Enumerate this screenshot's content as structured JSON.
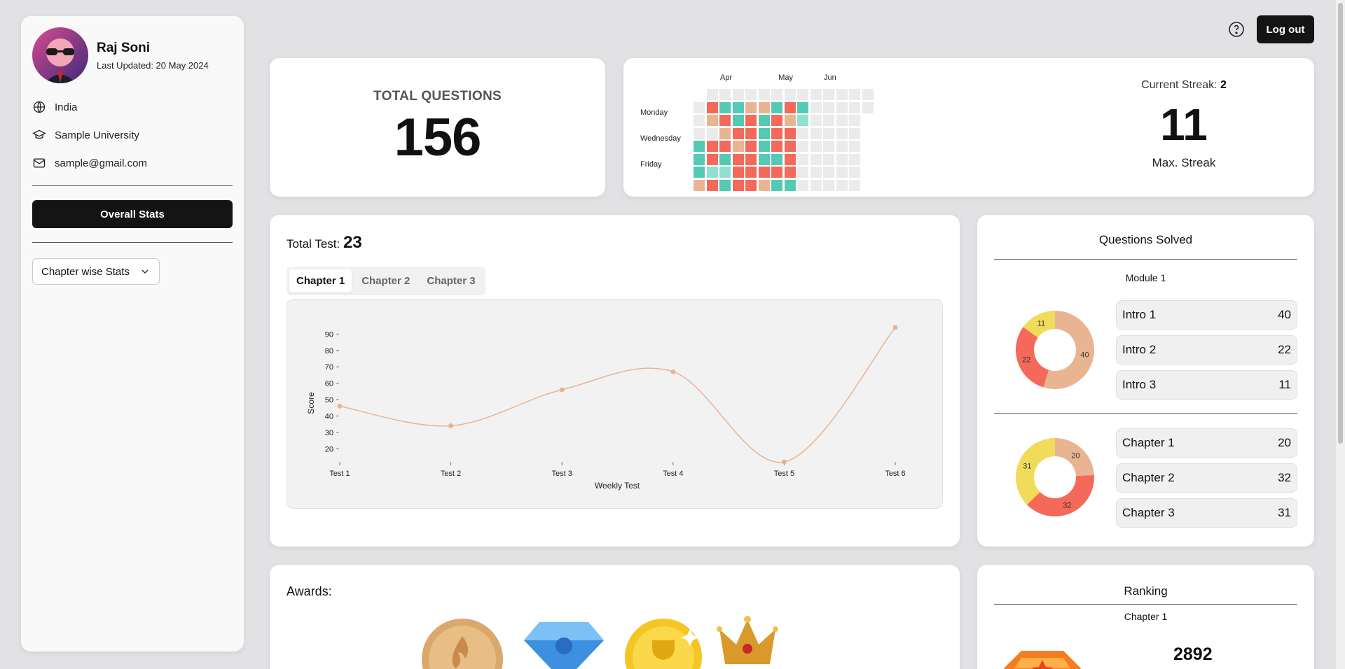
{
  "profile": {
    "name": "Raj Soni",
    "last_updated": "Last Updated: 20 May 2024",
    "country": "India",
    "university": "Sample University",
    "email": "sample@gmail.com"
  },
  "sidebar": {
    "overall_stats_label": "Overall Stats",
    "chapter_select_value": "Chapter wise Stats"
  },
  "header": {
    "logout_label": "Log out"
  },
  "total_questions": {
    "label": "TOTAL QUESTIONS",
    "value": "156"
  },
  "streak": {
    "current_label": "Current Streak:",
    "current_value": "2",
    "max_value": "11",
    "max_label": "Max. Streak"
  },
  "heatmap": {
    "months": [
      "Apr",
      "May",
      "Jun"
    ],
    "day_labels": [
      "Monday",
      "Wednesday",
      "Friday"
    ],
    "colors": {
      "none": "#ebebeb",
      "red": "#f4695a",
      "teal": "#54c9b4",
      "peach": "#e9b492",
      "light_teal": "#8fe0d0"
    },
    "grid": [
      [
        "",
        "none",
        "none",
        "none",
        "none",
        "none",
        "none",
        "none",
        "none",
        "none",
        "none",
        "none",
        "none",
        "none"
      ],
      [
        "none",
        "red",
        "teal",
        "teal",
        "peach",
        "peach",
        "teal",
        "red",
        "teal",
        "none",
        "none",
        "none",
        "none",
        "none"
      ],
      [
        "none",
        "peach",
        "red",
        "teal",
        "red",
        "teal",
        "red",
        "peach",
        "light_teal",
        "none",
        "none",
        "none",
        "none",
        ""
      ],
      [
        "none",
        "none",
        "peach",
        "red",
        "red",
        "teal",
        "red",
        "red",
        "none",
        "none",
        "none",
        "none",
        "none",
        ""
      ],
      [
        "teal",
        "red",
        "red",
        "peach",
        "red",
        "teal",
        "red",
        "red",
        "none",
        "none",
        "none",
        "none",
        "none",
        ""
      ],
      [
        "teal",
        "red",
        "teal",
        "red",
        "red",
        "teal",
        "teal",
        "red",
        "none",
        "none",
        "none",
        "none",
        "none",
        ""
      ],
      [
        "teal",
        "light_teal",
        "light_teal",
        "red",
        "red",
        "red",
        "red",
        "red",
        "none",
        "none",
        "none",
        "none",
        "none",
        ""
      ],
      [
        "peach",
        "red",
        "teal",
        "red",
        "red",
        "peach",
        "teal",
        "teal",
        "none",
        "none",
        "none",
        "none",
        "none",
        ""
      ]
    ]
  },
  "tests": {
    "total_label": "Total Test:",
    "total_value": "23",
    "tabs": [
      "Chapter 1",
      "Chapter 2",
      "Chapter 3"
    ],
    "active_tab": "Chapter 1"
  },
  "chart_data": {
    "type": "line",
    "categories": [
      "Test 1",
      "Test 2",
      "Test 3",
      "Test 4",
      "Test 5",
      "Test 6"
    ],
    "series": [
      {
        "values": [
          46,
          34,
          56,
          67,
          12,
          94
        ],
        "color": "#e9b492"
      }
    ],
    "xlabel": "Weekly Test",
    "ylabel": "Score",
    "yticks": [
      20,
      30,
      40,
      50,
      60,
      70,
      80,
      90
    ]
  },
  "questions_solved": {
    "title": "Questions Solved",
    "module_title": "Module 1",
    "modules": [
      {
        "label": "Intro 1",
        "value": 40
      },
      {
        "label": "Intro 2",
        "value": 22
      },
      {
        "label": "Intro 3",
        "value": 11
      }
    ],
    "chapters": [
      {
        "label": "Chapter 1",
        "value": 20
      },
      {
        "label": "Chapter 2",
        "value": 32
      },
      {
        "label": "Chapter 3",
        "value": 31
      }
    ],
    "colors": [
      "#e9b492",
      "#f4695a",
      "#f0dc5a"
    ]
  },
  "awards": {
    "label": "Awards:"
  },
  "ranking": {
    "title": "Ranking",
    "chapter": "Chapter 1",
    "value": "2892"
  }
}
